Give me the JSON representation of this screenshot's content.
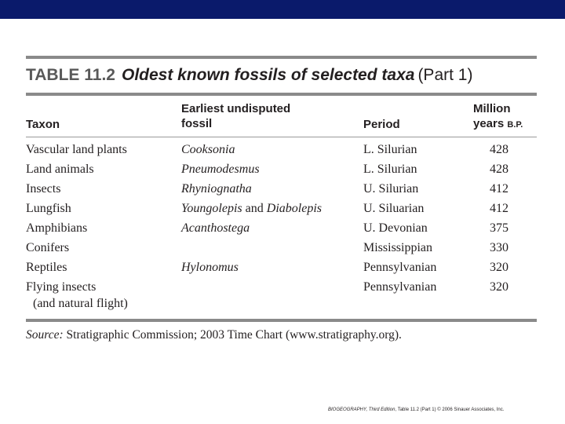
{
  "slide": {
    "title_number": "TABLE 11.2",
    "title_text": "Oldest known fossils of selected taxa",
    "title_part": "(Part 1)"
  },
  "columns": {
    "taxon": "Taxon",
    "fossil_line1": "Earliest undisputed",
    "fossil_line2": "fossil",
    "period": "Period",
    "years_line1": "Million",
    "years_line2a": "years",
    "years_line2b": "B.P."
  },
  "rows": [
    {
      "taxon": "Vascular land plants",
      "fossil": "Cooksonia",
      "period": "L. Silurian",
      "years": "428"
    },
    {
      "taxon": "Land animals",
      "fossil": "Pneumodesmus",
      "period": "L. Silurian",
      "years": "428"
    },
    {
      "taxon": "Insects",
      "fossil": "Rhyniognatha",
      "period": "U. Silurian",
      "years": "412"
    },
    {
      "taxon": "Lungfish",
      "fossil_a": "Youngolepis",
      "fossil_and": "and",
      "fossil_b": "Diabolepis",
      "period": "U. Siluarian",
      "years": "412"
    },
    {
      "taxon": "Amphibians",
      "fossil": "Acanthostega",
      "period": "U. Devonian",
      "years": "375"
    },
    {
      "taxon": "Conifers",
      "fossil": "",
      "period": "Mississippian",
      "years": "330"
    },
    {
      "taxon": "Reptiles",
      "fossil": "Hylonomus",
      "period": "Pennsylvanian",
      "years": "320"
    },
    {
      "taxon": "Flying insects",
      "taxon_line2": "(and natural flight)",
      "fossil": "",
      "period": "Pennsylvanian",
      "years": "320"
    }
  ],
  "source": {
    "label": "Source:",
    "text": "Stratigraphic Commission; 2003 Time Chart (www.stratigraphy.org)."
  },
  "credit": {
    "book": "BIOGEOGRAPHY, Third Edition",
    "rest": ", Table 11.2 (Part 1) © 2006 Sinauer Associates, Inc."
  },
  "colors": {
    "top_bar": "#0a1a6b",
    "rules": "#8a8a8a"
  }
}
